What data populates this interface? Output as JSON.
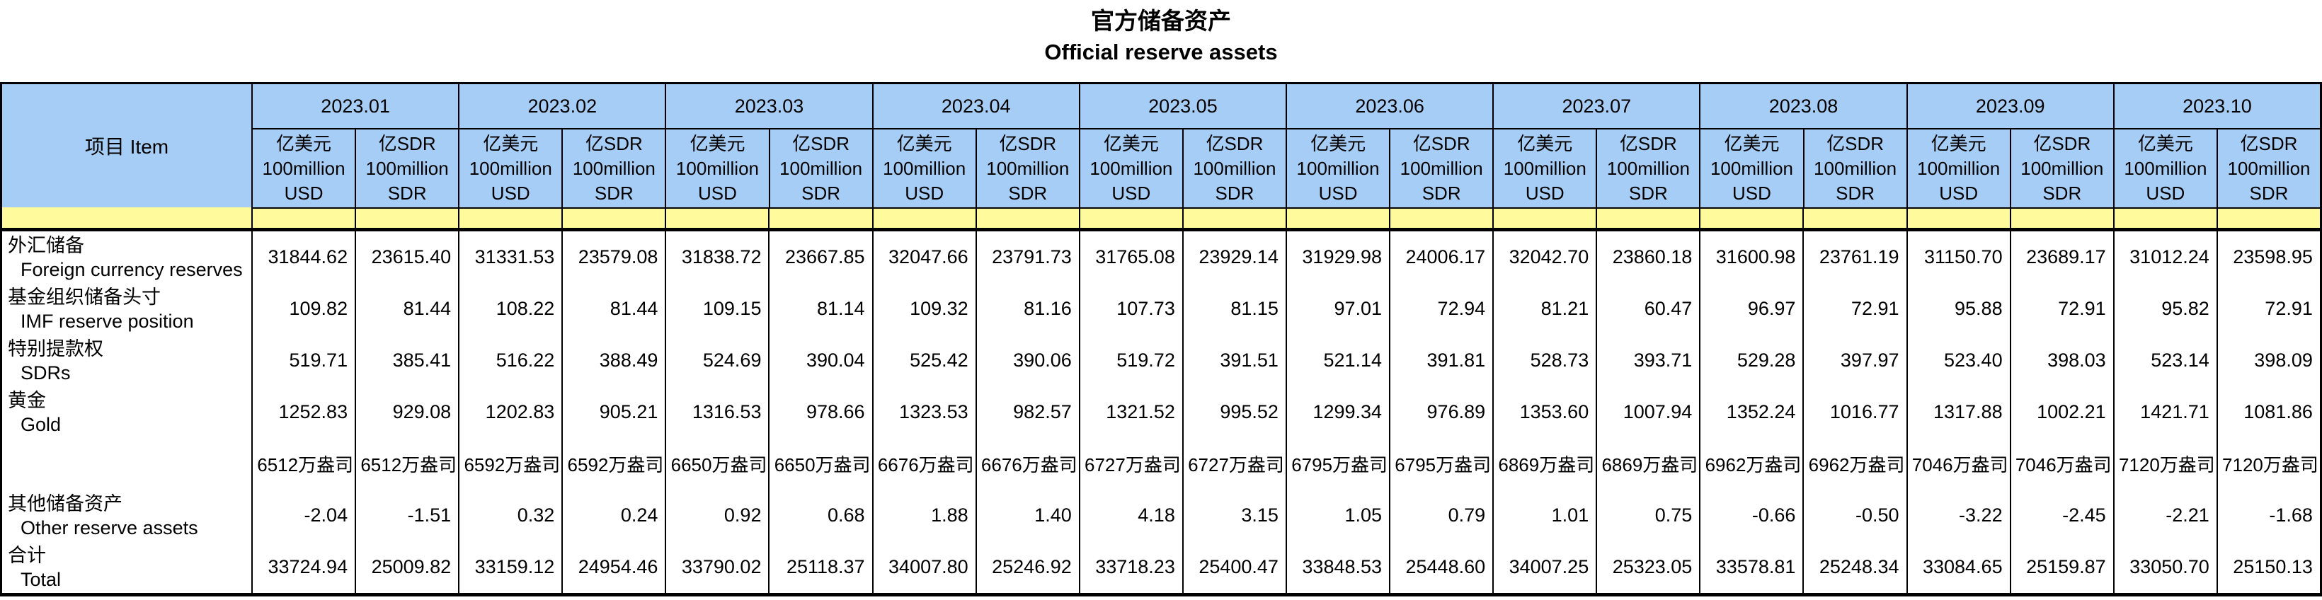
{
  "page": {
    "title_zh": "官方储备资产",
    "title_en": "Official reserve assets"
  },
  "colors": {
    "header_blue": "#A6CDF5",
    "band_yellow": "#FFFB9D",
    "border": "#000000",
    "background": "#FFFFFF"
  },
  "table": {
    "item_header": "项目  Item",
    "months": [
      "2023.01",
      "2023.02",
      "2023.03",
      "2023.04",
      "2023.05",
      "2023.06",
      "2023.07",
      "2023.08",
      "2023.09",
      "2023.10"
    ],
    "unit_headers": {
      "usd": [
        "亿美元",
        "100million",
        "USD"
      ],
      "sdr": [
        "亿SDR",
        "100million",
        "SDR"
      ]
    },
    "rows": [
      {
        "zh": "外汇储备",
        "en": "Foreign currency reserves",
        "ounce": false,
        "usd": [
          "31844.62",
          "31331.53",
          "31838.72",
          "32047.66",
          "31765.08",
          "31929.98",
          "32042.70",
          "31600.98",
          "31150.70",
          "31012.24"
        ],
        "sdr": [
          "23615.40",
          "23579.08",
          "23667.85",
          "23791.73",
          "23929.14",
          "24006.17",
          "23860.18",
          "23761.19",
          "23689.17",
          "23598.95"
        ]
      },
      {
        "zh": "基金组织储备头寸",
        "en": "IMF reserve position",
        "ounce": false,
        "usd": [
          "109.82",
          "108.22",
          "109.15",
          "109.32",
          "107.73",
          "97.01",
          "81.21",
          "96.97",
          "95.88",
          "95.82"
        ],
        "sdr": [
          "81.44",
          "81.44",
          "81.14",
          "81.16",
          "81.15",
          "72.94",
          "60.47",
          "72.91",
          "72.91",
          "72.91"
        ]
      },
      {
        "zh": "特别提款权",
        "en": "SDRs",
        "ounce": false,
        "usd": [
          "519.71",
          "516.22",
          "524.69",
          "525.42",
          "519.72",
          "521.14",
          "528.73",
          "529.28",
          "523.40",
          "523.14"
        ],
        "sdr": [
          "385.41",
          "388.49",
          "390.04",
          "390.06",
          "391.51",
          "391.81",
          "393.71",
          "397.97",
          "398.03",
          "398.09"
        ]
      },
      {
        "zh": "黄金",
        "en": "Gold",
        "ounce": false,
        "usd": [
          "1252.83",
          "1202.83",
          "1316.53",
          "1323.53",
          "1321.52",
          "1299.34",
          "1353.60",
          "1352.24",
          "1317.88",
          "1421.71"
        ],
        "sdr": [
          "929.08",
          "905.21",
          "978.66",
          "982.57",
          "995.52",
          "976.89",
          "1007.94",
          "1016.77",
          "1002.21",
          "1081.86"
        ]
      },
      {
        "zh": "",
        "en": "",
        "ounce": true,
        "usd": [
          "6512万盎司",
          "6592万盎司",
          "6650万盎司",
          "6676万盎司",
          "6727万盎司",
          "6795万盎司",
          "6869万盎司",
          "6962万盎司",
          "7046万盎司",
          "7120万盎司"
        ],
        "sdr": [
          "6512万盎司",
          "6592万盎司",
          "6650万盎司",
          "6676万盎司",
          "6727万盎司",
          "6795万盎司",
          "6869万盎司",
          "6962万盎司",
          "7046万盎司",
          "7120万盎司"
        ]
      },
      {
        "zh": "其他储备资产",
        "en": "Other reserve assets",
        "ounce": false,
        "usd": [
          "-2.04",
          "0.32",
          "0.92",
          "1.88",
          "4.18",
          "1.05",
          "1.01",
          "-0.66",
          "-3.22",
          "-2.21"
        ],
        "sdr": [
          "-1.51",
          "0.24",
          "0.68",
          "1.40",
          "3.15",
          "0.79",
          "0.75",
          "-0.50",
          "-2.45",
          "-1.68"
        ]
      },
      {
        "zh": "合计",
        "en": "Total",
        "ounce": false,
        "usd": [
          "33724.94",
          "33159.12",
          "33790.02",
          "34007.80",
          "33718.23",
          "33848.53",
          "34007.25",
          "33578.81",
          "33084.65",
          "33050.70"
        ],
        "sdr": [
          "25009.82",
          "24954.46",
          "25118.37",
          "25246.92",
          "25400.47",
          "25448.60",
          "25323.05",
          "25248.34",
          "25159.87",
          "25150.13"
        ]
      }
    ]
  }
}
